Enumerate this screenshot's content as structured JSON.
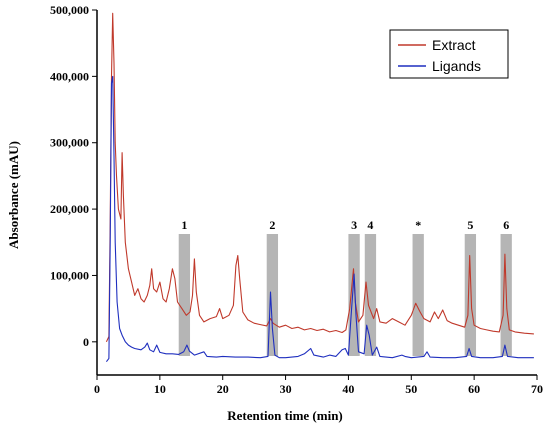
{
  "chart_data": {
    "type": "line",
    "title": "",
    "xlabel": "Retention time (min)",
    "ylabel": "Absorbance (mAU)",
    "xlim": [
      0,
      70
    ],
    "ylim": [
      -50000,
      500000
    ],
    "x_ticks": [
      0,
      10,
      20,
      30,
      40,
      50,
      60,
      70
    ],
    "x_tick_labels": [
      "0",
      "10",
      "20",
      "30",
      "40",
      "50",
      "60",
      "70"
    ],
    "y_ticks": [
      0,
      100000,
      200000,
      300000,
      400000,
      500000
    ],
    "y_tick_labels": [
      "0",
      "100,000",
      "200,000",
      "300,000",
      "400,000",
      "500,000"
    ],
    "legend_position": "top-right",
    "grid": false,
    "bands": [
      {
        "label": "1",
        "x0": 13.0,
        "x1": 14.8
      },
      {
        "label": "2",
        "x0": 27.0,
        "x1": 28.8
      },
      {
        "label": "3",
        "x0": 40.0,
        "x1": 41.8
      },
      {
        "label": "4",
        "x0": 42.6,
        "x1": 44.4
      },
      {
        "label": "*",
        "x0": 50.2,
        "x1": 52.0
      },
      {
        "label": "5",
        "x0": 58.5,
        "x1": 60.3
      },
      {
        "label": "6",
        "x0": 64.2,
        "x1": 66.0
      }
    ],
    "series": [
      {
        "name": "Extract",
        "color": "#c0392b",
        "points": [
          [
            1.5,
            0
          ],
          [
            1.9,
            8000
          ],
          [
            2.1,
            180000
          ],
          [
            2.3,
            400000
          ],
          [
            2.5,
            495000
          ],
          [
            2.7,
            420000
          ],
          [
            2.9,
            300000
          ],
          [
            3.1,
            250000
          ],
          [
            3.4,
            200000
          ],
          [
            3.8,
            185000
          ],
          [
            4.0,
            285000
          ],
          [
            4.2,
            220000
          ],
          [
            4.5,
            150000
          ],
          [
            5.0,
            110000
          ],
          [
            5.5,
            90000
          ],
          [
            6.0,
            70000
          ],
          [
            6.5,
            80000
          ],
          [
            7.0,
            65000
          ],
          [
            7.5,
            60000
          ],
          [
            8.0,
            70000
          ],
          [
            8.4,
            85000
          ],
          [
            8.7,
            110000
          ],
          [
            9.0,
            80000
          ],
          [
            9.5,
            75000
          ],
          [
            10.0,
            90000
          ],
          [
            10.5,
            65000
          ],
          [
            11.0,
            60000
          ],
          [
            11.5,
            80000
          ],
          [
            12.0,
            110000
          ],
          [
            12.4,
            95000
          ],
          [
            12.8,
            60000
          ],
          [
            13.5,
            50000
          ],
          [
            14.2,
            40000
          ],
          [
            14.8,
            45000
          ],
          [
            15.2,
            70000
          ],
          [
            15.5,
            125000
          ],
          [
            15.8,
            75000
          ],
          [
            16.3,
            40000
          ],
          [
            17.0,
            30000
          ],
          [
            18.0,
            35000
          ],
          [
            19.0,
            38000
          ],
          [
            19.5,
            50000
          ],
          [
            20.0,
            35000
          ],
          [
            21.0,
            40000
          ],
          [
            21.7,
            55000
          ],
          [
            22.1,
            115000
          ],
          [
            22.4,
            130000
          ],
          [
            22.7,
            95000
          ],
          [
            23.2,
            45000
          ],
          [
            24.0,
            33000
          ],
          [
            25.0,
            28000
          ],
          [
            26.0,
            26000
          ],
          [
            27.0,
            24000
          ],
          [
            27.6,
            35000
          ],
          [
            28.0,
            28000
          ],
          [
            29.0,
            22000
          ],
          [
            30.0,
            25000
          ],
          [
            31.0,
            20000
          ],
          [
            32.0,
            22000
          ],
          [
            33.0,
            18000
          ],
          [
            34.0,
            20000
          ],
          [
            35.0,
            17000
          ],
          [
            36.0,
            19000
          ],
          [
            37.0,
            15000
          ],
          [
            38.0,
            17000
          ],
          [
            39.0,
            14000
          ],
          [
            39.6,
            18000
          ],
          [
            40.2,
            50000
          ],
          [
            40.8,
            110000
          ],
          [
            41.1,
            60000
          ],
          [
            41.6,
            30000
          ],
          [
            42.3,
            40000
          ],
          [
            42.8,
            90000
          ],
          [
            43.2,
            55000
          ],
          [
            44.0,
            35000
          ],
          [
            44.5,
            50000
          ],
          [
            45.0,
            30000
          ],
          [
            46.0,
            28000
          ],
          [
            47.0,
            35000
          ],
          [
            48.0,
            30000
          ],
          [
            49.0,
            25000
          ],
          [
            50.0,
            40000
          ],
          [
            50.7,
            58000
          ],
          [
            51.4,
            45000
          ],
          [
            52.0,
            35000
          ],
          [
            53.0,
            30000
          ],
          [
            53.7,
            45000
          ],
          [
            54.3,
            35000
          ],
          [
            55.0,
            48000
          ],
          [
            55.7,
            32000
          ],
          [
            56.5,
            28000
          ],
          [
            57.5,
            25000
          ],
          [
            58.5,
            22000
          ],
          [
            59.0,
            40000
          ],
          [
            59.3,
            130000
          ],
          [
            59.6,
            50000
          ],
          [
            60.0,
            25000
          ],
          [
            61.0,
            20000
          ],
          [
            62.0,
            18000
          ],
          [
            63.0,
            16000
          ],
          [
            64.0,
            15000
          ],
          [
            64.6,
            40000
          ],
          [
            64.9,
            132000
          ],
          [
            65.2,
            50000
          ],
          [
            65.6,
            18000
          ],
          [
            66.5,
            15000
          ],
          [
            68.0,
            13000
          ],
          [
            69.5,
            12000
          ]
        ]
      },
      {
        "name": "Ligands",
        "color": "#1f2fbf",
        "points": [
          [
            1.5,
            -30000
          ],
          [
            1.9,
            -25000
          ],
          [
            2.1,
            150000
          ],
          [
            2.3,
            390000
          ],
          [
            2.5,
            400000
          ],
          [
            2.7,
            280000
          ],
          [
            2.9,
            150000
          ],
          [
            3.2,
            60000
          ],
          [
            3.6,
            20000
          ],
          [
            4.0,
            10000
          ],
          [
            4.5,
            0
          ],
          [
            5.0,
            -5000
          ],
          [
            5.5,
            -8000
          ],
          [
            6.0,
            -10000
          ],
          [
            7.0,
            -12000
          ],
          [
            7.6,
            -8000
          ],
          [
            8.0,
            -2000
          ],
          [
            8.4,
            -12000
          ],
          [
            9.0,
            -15000
          ],
          [
            9.5,
            -5000
          ],
          [
            10.0,
            -16000
          ],
          [
            11.0,
            -18000
          ],
          [
            12.0,
            -18000
          ],
          [
            13.0,
            -19000
          ],
          [
            13.8,
            -15000
          ],
          [
            14.3,
            -5000
          ],
          [
            14.7,
            -14000
          ],
          [
            15.5,
            -20000
          ],
          [
            17.0,
            -15000
          ],
          [
            17.5,
            -22000
          ],
          [
            19.0,
            -23000
          ],
          [
            20.0,
            -22000
          ],
          [
            22.0,
            -23000
          ],
          [
            24.0,
            -23000
          ],
          [
            26.0,
            -24000
          ],
          [
            27.2,
            -22000
          ],
          [
            27.6,
            75000
          ],
          [
            27.9,
            20000
          ],
          [
            28.3,
            -20000
          ],
          [
            29.0,
            -24000
          ],
          [
            30.0,
            -24000
          ],
          [
            32.0,
            -22000
          ],
          [
            33.0,
            -18000
          ],
          [
            34.0,
            -10000
          ],
          [
            34.5,
            -20000
          ],
          [
            36.0,
            -23000
          ],
          [
            37.0,
            -20000
          ],
          [
            38.0,
            -22000
          ],
          [
            39.0,
            -12000
          ],
          [
            39.5,
            -10000
          ],
          [
            40.0,
            -20000
          ],
          [
            40.5,
            50000
          ],
          [
            40.9,
            102000
          ],
          [
            41.2,
            40000
          ],
          [
            41.6,
            -15000
          ],
          [
            42.5,
            -18000
          ],
          [
            42.9,
            25000
          ],
          [
            43.3,
            10000
          ],
          [
            43.8,
            -20000
          ],
          [
            44.5,
            -8000
          ],
          [
            45.0,
            -22000
          ],
          [
            47.0,
            -24000
          ],
          [
            48.5,
            -20000
          ],
          [
            49.0,
            -22000
          ],
          [
            50.0,
            -24000
          ],
          [
            52.0,
            -22000
          ],
          [
            52.5,
            -15000
          ],
          [
            53.0,
            -23000
          ],
          [
            55.0,
            -24000
          ],
          [
            57.0,
            -24000
          ],
          [
            58.8,
            -22000
          ],
          [
            59.2,
            -10000
          ],
          [
            59.6,
            -22000
          ],
          [
            61.0,
            -24000
          ],
          [
            63.0,
            -24000
          ],
          [
            64.5,
            -22000
          ],
          [
            64.9,
            -5000
          ],
          [
            65.3,
            -22000
          ],
          [
            67.0,
            -24000
          ],
          [
            69.5,
            -24000
          ]
        ]
      }
    ]
  }
}
